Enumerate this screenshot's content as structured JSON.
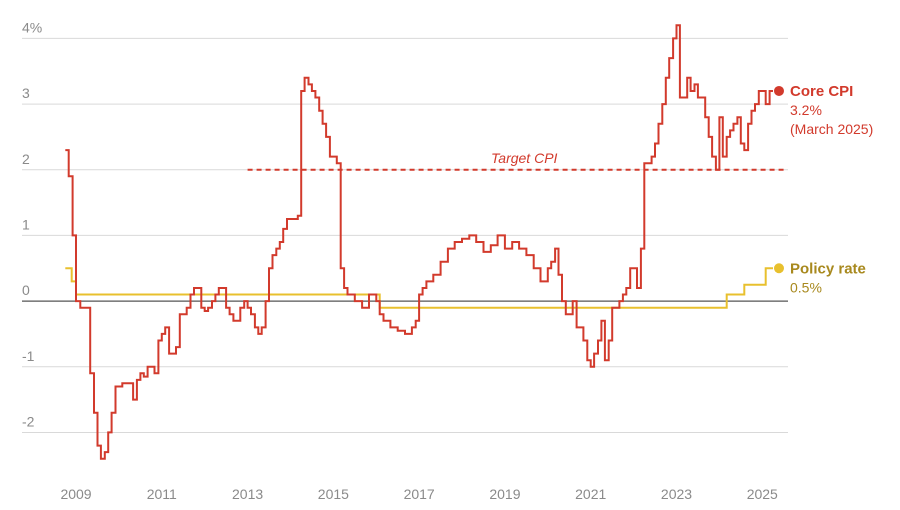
{
  "chart_data": {
    "type": "line",
    "xlim": [
      2008.3,
      2025.6
    ],
    "ylim": [
      -2.45,
      4.25
    ],
    "y_ticks": [
      {
        "value": 4,
        "label": "4%"
      },
      {
        "value": 3,
        "label": "3"
      },
      {
        "value": 2,
        "label": "2"
      },
      {
        "value": 1,
        "label": "1"
      },
      {
        "value": 0,
        "label": "0"
      },
      {
        "value": -1,
        "label": "-1"
      },
      {
        "value": -2,
        "label": "-2"
      }
    ],
    "x_ticks": [
      {
        "value": 2009,
        "label": "2009"
      },
      {
        "value": 2011,
        "label": "2011"
      },
      {
        "value": 2013,
        "label": "2013"
      },
      {
        "value": 2015,
        "label": "2015"
      },
      {
        "value": 2017,
        "label": "2017"
      },
      {
        "value": 2019,
        "label": "2019"
      },
      {
        "value": 2021,
        "label": "2021"
      },
      {
        "value": 2023,
        "label": "2023"
      },
      {
        "value": 2025,
        "label": "2025"
      }
    ],
    "grid": true,
    "colors": {
      "core_cpi": "#d23a2c",
      "policy_rate": "#e8c02e",
      "policy_label": "#a8891e",
      "grid": "#d9d9d9",
      "zero_line": "#555555"
    },
    "target": {
      "label": "Target CPI",
      "value": 2,
      "x_start": 2013.0,
      "x_end": 2025.5
    },
    "series": [
      {
        "name": "Core CPI",
        "id": "core_cpi",
        "value_label": "3.2%",
        "date_label": "(March 2025)",
        "step": true,
        "points": [
          [
            2008.75,
            2.3
          ],
          [
            2008.83,
            1.9
          ],
          [
            2008.92,
            1.0
          ],
          [
            2009.0,
            0.0
          ],
          [
            2009.1,
            -0.1
          ],
          [
            2009.25,
            -0.1
          ],
          [
            2009.33,
            -1.1
          ],
          [
            2009.42,
            -1.7
          ],
          [
            2009.5,
            -2.2
          ],
          [
            2009.58,
            -2.4
          ],
          [
            2009.67,
            -2.3
          ],
          [
            2009.75,
            -2.0
          ],
          [
            2009.83,
            -1.7
          ],
          [
            2009.92,
            -1.3
          ],
          [
            2010.08,
            -1.25
          ],
          [
            2010.25,
            -1.25
          ],
          [
            2010.33,
            -1.5
          ],
          [
            2010.42,
            -1.2
          ],
          [
            2010.5,
            -1.1
          ],
          [
            2010.58,
            -1.15
          ],
          [
            2010.67,
            -1.0
          ],
          [
            2010.83,
            -1.1
          ],
          [
            2010.92,
            -0.6
          ],
          [
            2011.0,
            -0.5
          ],
          [
            2011.08,
            -0.4
          ],
          [
            2011.17,
            -0.8
          ],
          [
            2011.33,
            -0.7
          ],
          [
            2011.42,
            -0.2
          ],
          [
            2011.58,
            -0.1
          ],
          [
            2011.67,
            0.1
          ],
          [
            2011.75,
            0.2
          ],
          [
            2011.83,
            0.2
          ],
          [
            2011.92,
            -0.1
          ],
          [
            2012.0,
            -0.15
          ],
          [
            2012.08,
            -0.1
          ],
          [
            2012.17,
            0.0
          ],
          [
            2012.25,
            0.1
          ],
          [
            2012.33,
            0.2
          ],
          [
            2012.5,
            -0.1
          ],
          [
            2012.58,
            -0.2
          ],
          [
            2012.67,
            -0.3
          ],
          [
            2012.83,
            -0.1
          ],
          [
            2012.92,
            0.0
          ],
          [
            2013.0,
            -0.1
          ],
          [
            2013.08,
            -0.2
          ],
          [
            2013.17,
            -0.4
          ],
          [
            2013.25,
            -0.5
          ],
          [
            2013.33,
            -0.4
          ],
          [
            2013.42,
            0.0
          ],
          [
            2013.5,
            0.5
          ],
          [
            2013.58,
            0.7
          ],
          [
            2013.67,
            0.8
          ],
          [
            2013.75,
            0.9
          ],
          [
            2013.83,
            1.1
          ],
          [
            2013.92,
            1.25
          ],
          [
            2014.17,
            1.3
          ],
          [
            2014.25,
            3.2
          ],
          [
            2014.33,
            3.4
          ],
          [
            2014.42,
            3.3
          ],
          [
            2014.5,
            3.2
          ],
          [
            2014.58,
            3.1
          ],
          [
            2014.67,
            2.9
          ],
          [
            2014.75,
            2.7
          ],
          [
            2014.83,
            2.5
          ],
          [
            2014.92,
            2.2
          ],
          [
            2015.08,
            2.1
          ],
          [
            2015.17,
            0.5
          ],
          [
            2015.25,
            0.2
          ],
          [
            2015.33,
            0.1
          ],
          [
            2015.5,
            0.0
          ],
          [
            2015.67,
            -0.1
          ],
          [
            2015.83,
            0.1
          ],
          [
            2016.0,
            0.0
          ],
          [
            2016.08,
            -0.2
          ],
          [
            2016.17,
            -0.3
          ],
          [
            2016.33,
            -0.4
          ],
          [
            2016.5,
            -0.45
          ],
          [
            2016.67,
            -0.5
          ],
          [
            2016.83,
            -0.4
          ],
          [
            2016.92,
            -0.3
          ],
          [
            2017.0,
            0.1
          ],
          [
            2017.08,
            0.2
          ],
          [
            2017.17,
            0.3
          ],
          [
            2017.33,
            0.4
          ],
          [
            2017.5,
            0.6
          ],
          [
            2017.67,
            0.8
          ],
          [
            2017.83,
            0.9
          ],
          [
            2018.0,
            0.95
          ],
          [
            2018.17,
            1.0
          ],
          [
            2018.33,
            0.9
          ],
          [
            2018.5,
            0.75
          ],
          [
            2018.67,
            0.85
          ],
          [
            2018.83,
            1.0
          ],
          [
            2019.0,
            0.8
          ],
          [
            2019.17,
            0.9
          ],
          [
            2019.33,
            0.8
          ],
          [
            2019.5,
            0.7
          ],
          [
            2019.67,
            0.5
          ],
          [
            2019.83,
            0.3
          ],
          [
            2020.0,
            0.5
          ],
          [
            2020.08,
            0.6
          ],
          [
            2020.17,
            0.8
          ],
          [
            2020.25,
            0.4
          ],
          [
            2020.33,
            0.0
          ],
          [
            2020.42,
            -0.2
          ],
          [
            2020.58,
            0.0
          ],
          [
            2020.67,
            -0.4
          ],
          [
            2020.83,
            -0.6
          ],
          [
            2020.92,
            -0.9
          ],
          [
            2021.0,
            -1.0
          ],
          [
            2021.08,
            -0.8
          ],
          [
            2021.17,
            -0.6
          ],
          [
            2021.25,
            -0.3
          ],
          [
            2021.33,
            -0.9
          ],
          [
            2021.42,
            -0.6
          ],
          [
            2021.5,
            -0.1
          ],
          [
            2021.67,
            0.0
          ],
          [
            2021.75,
            0.1
          ],
          [
            2021.83,
            0.2
          ],
          [
            2021.92,
            0.5
          ],
          [
            2022.0,
            0.5
          ],
          [
            2022.08,
            0.2
          ],
          [
            2022.17,
            0.8
          ],
          [
            2022.25,
            2.1
          ],
          [
            2022.42,
            2.2
          ],
          [
            2022.5,
            2.4
          ],
          [
            2022.58,
            2.7
          ],
          [
            2022.67,
            3.0
          ],
          [
            2022.75,
            3.4
          ],
          [
            2022.83,
            3.7
          ],
          [
            2022.92,
            4.0
          ],
          [
            2023.0,
            4.2
          ],
          [
            2023.08,
            3.1
          ],
          [
            2023.25,
            3.4
          ],
          [
            2023.33,
            3.2
          ],
          [
            2023.42,
            3.3
          ],
          [
            2023.5,
            3.1
          ],
          [
            2023.67,
            2.8
          ],
          [
            2023.75,
            2.5
          ],
          [
            2023.83,
            2.2
          ],
          [
            2023.92,
            2.0
          ],
          [
            2024.0,
            2.8
          ],
          [
            2024.08,
            2.2
          ],
          [
            2024.17,
            2.5
          ],
          [
            2024.25,
            2.6
          ],
          [
            2024.33,
            2.7
          ],
          [
            2024.42,
            2.8
          ],
          [
            2024.5,
            2.4
          ],
          [
            2024.58,
            2.3
          ],
          [
            2024.67,
            2.7
          ],
          [
            2024.75,
            2.9
          ],
          [
            2024.83,
            3.0
          ],
          [
            2024.92,
            3.2
          ],
          [
            2025.08,
            3.0
          ],
          [
            2025.17,
            3.2
          ],
          [
            2025.25,
            3.2
          ]
        ]
      },
      {
        "name": "Policy rate",
        "id": "policy_rate",
        "value_label": "0.5%",
        "step": true,
        "points": [
          [
            2008.75,
            0.5
          ],
          [
            2008.9,
            0.3
          ],
          [
            2009.0,
            0.1
          ],
          [
            2016.08,
            -0.1
          ],
          [
            2024.17,
            0.1
          ],
          [
            2024.58,
            0.25
          ],
          [
            2025.08,
            0.5
          ],
          [
            2025.25,
            0.5
          ]
        ]
      }
    ]
  }
}
